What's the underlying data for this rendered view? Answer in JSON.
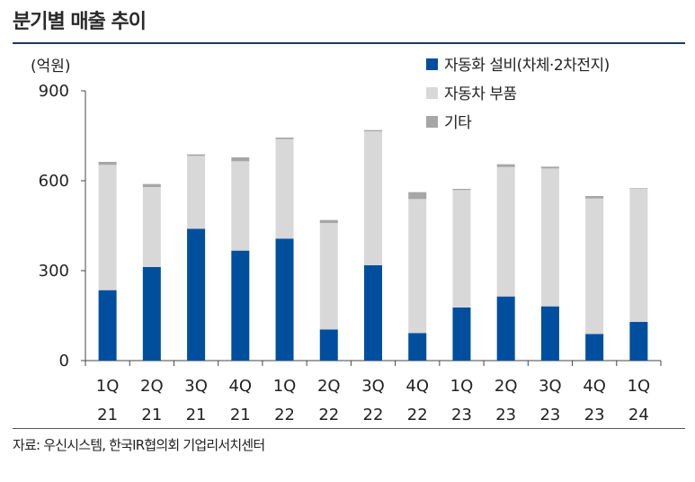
{
  "title": "분기별 매출 추이",
  "source": "자료: 우신시스템, 한국IR협의회 기업리서치센터",
  "chart_data": {
    "type": "bar",
    "stacked": true,
    "unit_label": "(억원)",
    "ylim": [
      0,
      900
    ],
    "yticks": [
      0,
      300,
      600,
      900
    ],
    "categories": [
      [
        "1Q",
        "21"
      ],
      [
        "2Q",
        "21"
      ],
      [
        "3Q",
        "21"
      ],
      [
        "4Q",
        "21"
      ],
      [
        "1Q",
        "22"
      ],
      [
        "2Q",
        "22"
      ],
      [
        "3Q",
        "22"
      ],
      [
        "4Q",
        "22"
      ],
      [
        "1Q",
        "23"
      ],
      [
        "2Q",
        "23"
      ],
      [
        "3Q",
        "23"
      ],
      [
        "4Q",
        "23"
      ],
      [
        "1Q",
        "24"
      ]
    ],
    "series": [
      {
        "name": "자동화 설비(차체·2차전지)",
        "color": "#004f9f",
        "values": [
          235,
          312,
          440,
          367,
          407,
          104,
          318,
          92,
          177,
          214,
          181,
          89,
          129
        ]
      },
      {
        "name": "자동차 부품",
        "color": "#d8d8d8",
        "values": [
          418,
          267,
          243,
          298,
          332,
          355,
          447,
          447,
          392,
          432,
          460,
          452,
          444
        ]
      },
      {
        "name": "기타",
        "color": "#a6a6a6",
        "values": [
          10,
          10,
          5,
          13,
          5,
          10,
          4,
          23,
          4,
          9,
          6,
          8,
          2
        ]
      }
    ],
    "legend_position": "top-right"
  }
}
